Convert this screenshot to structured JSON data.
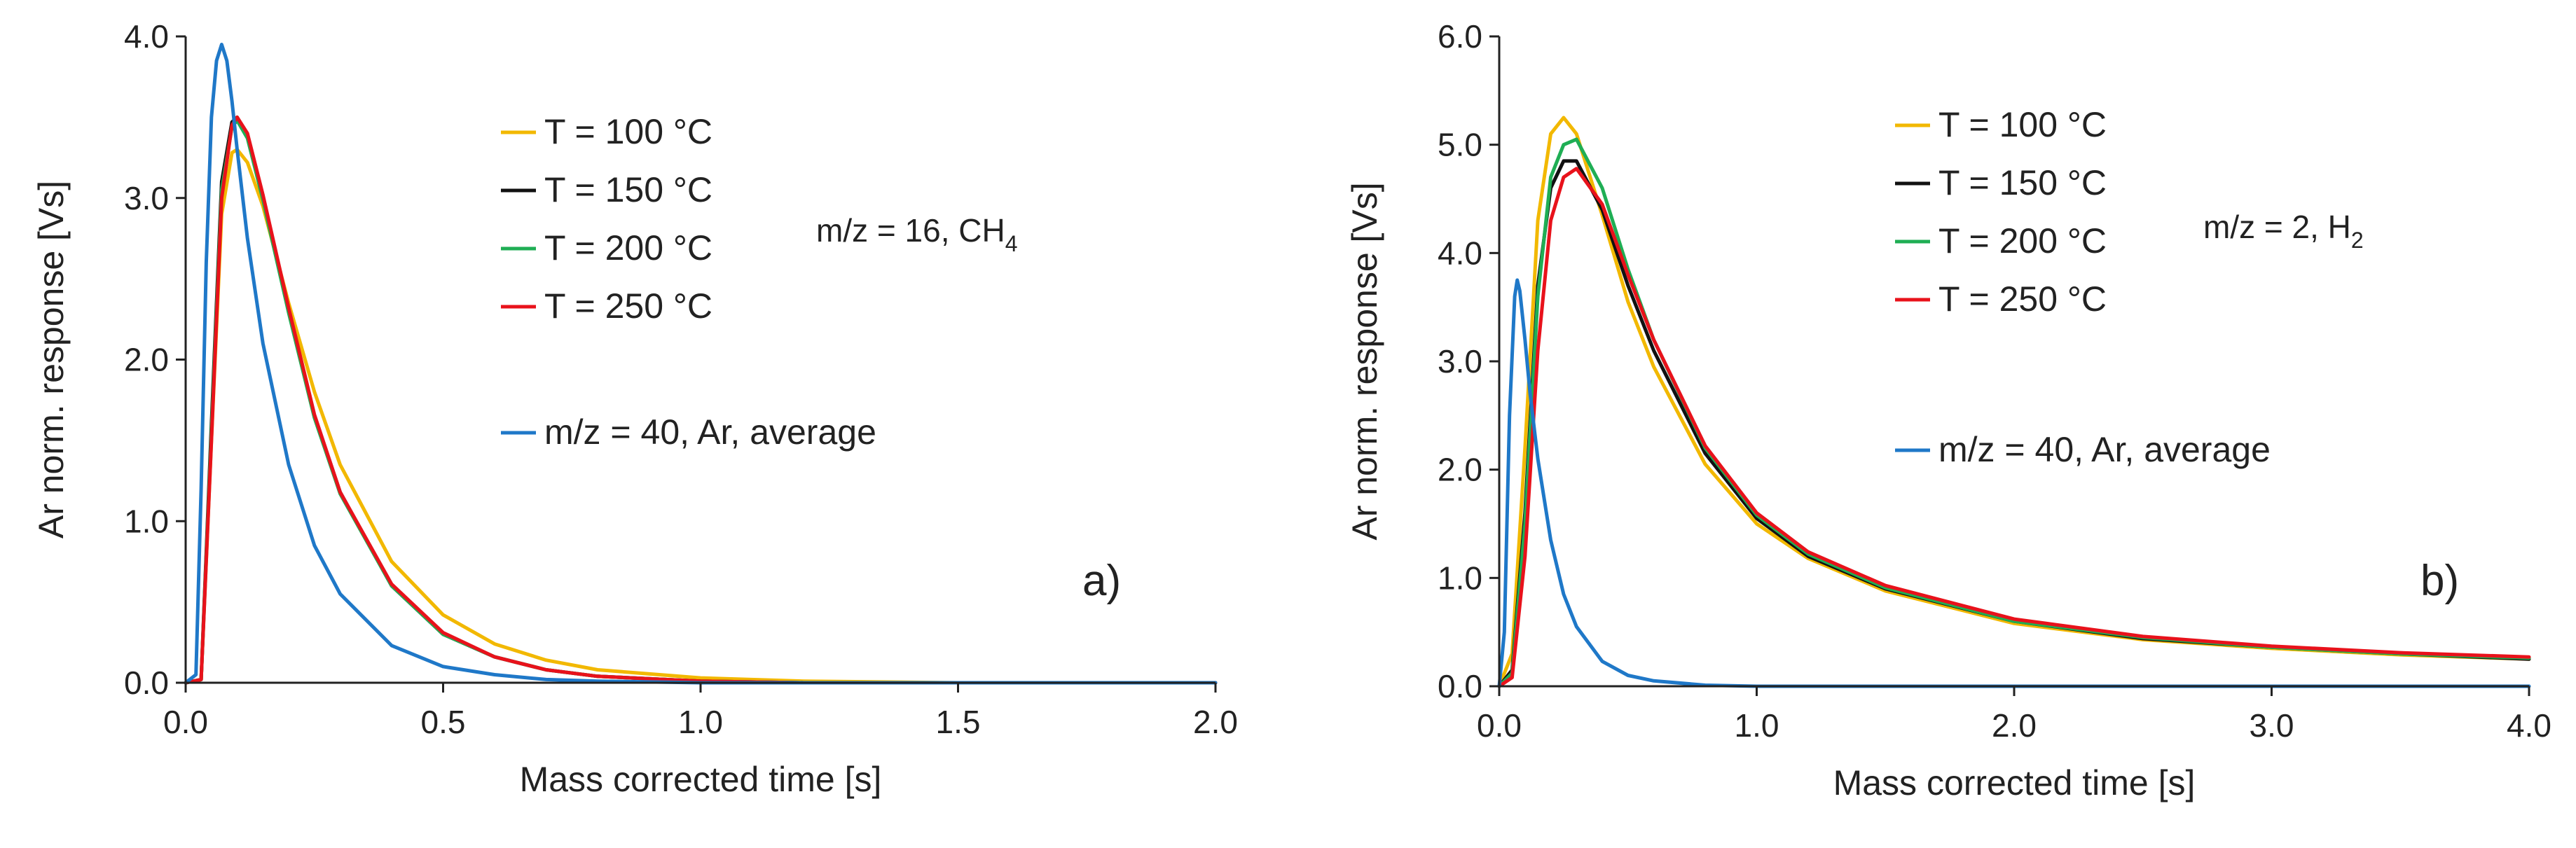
{
  "chart_data": [
    {
      "type": "line",
      "panel_label": "a)",
      "xlabel": "Mass corrected time [s]",
      "ylabel": "Ar norm. response [Vs]",
      "xlim": [
        0,
        2.0
      ],
      "ylim": [
        0,
        4.0
      ],
      "x_ticks": [
        "0.0",
        "0.5",
        "1.0",
        "1.5",
        "2.0"
      ],
      "y_ticks": [
        "0.0",
        "1.0",
        "2.0",
        "3.0",
        "4.0"
      ],
      "annotation": {
        "text": "m/z = 16, CH",
        "sub": "4"
      },
      "legend_position": "top-center",
      "series": [
        {
          "name": "T = 100 °C",
          "color": "#f2b800",
          "x": [
            0,
            0.03,
            0.05,
            0.07,
            0.09,
            0.1,
            0.12,
            0.15,
            0.2,
            0.25,
            0.3,
            0.4,
            0.5,
            0.6,
            0.7,
            0.8,
            1.0,
            1.2,
            1.5,
            2.0
          ],
          "y": [
            0,
            0.02,
            1.5,
            2.9,
            3.28,
            3.3,
            3.22,
            2.95,
            2.35,
            1.8,
            1.35,
            0.75,
            0.42,
            0.24,
            0.14,
            0.08,
            0.03,
            0.01,
            0.0,
            0.0
          ]
        },
        {
          "name": "T = 150 °C",
          "color": "#111111",
          "x": [
            0,
            0.03,
            0.05,
            0.07,
            0.09,
            0.1,
            0.12,
            0.15,
            0.2,
            0.25,
            0.3,
            0.4,
            0.5,
            0.6,
            0.7,
            0.8,
            1.0,
            1.2,
            1.5,
            2.0
          ],
          "y": [
            0,
            0.02,
            1.6,
            3.1,
            3.47,
            3.5,
            3.38,
            3.0,
            2.3,
            1.65,
            1.18,
            0.6,
            0.3,
            0.16,
            0.08,
            0.04,
            0.01,
            0.0,
            0.0,
            0.0
          ]
        },
        {
          "name": "T = 200 °C",
          "color": "#1fae54",
          "x": [
            0,
            0.03,
            0.05,
            0.07,
            0.09,
            0.1,
            0.12,
            0.15,
            0.2,
            0.25,
            0.3,
            0.4,
            0.5,
            0.6,
            0.7,
            0.8,
            1.0,
            1.2,
            1.5,
            2.0
          ],
          "y": [
            0,
            0.02,
            1.55,
            3.05,
            3.44,
            3.48,
            3.37,
            2.99,
            2.29,
            1.64,
            1.17,
            0.6,
            0.3,
            0.16,
            0.08,
            0.04,
            0.01,
            0.0,
            0.0,
            0.0
          ]
        },
        {
          "name": "T = 250 °C",
          "color": "#e8121b",
          "x": [
            0,
            0.03,
            0.05,
            0.07,
            0.09,
            0.1,
            0.12,
            0.15,
            0.2,
            0.25,
            0.3,
            0.4,
            0.5,
            0.6,
            0.7,
            0.8,
            1.0,
            1.2,
            1.5,
            2.0
          ],
          "y": [
            0,
            0.02,
            1.5,
            3.0,
            3.45,
            3.5,
            3.4,
            3.02,
            2.32,
            1.66,
            1.18,
            0.61,
            0.31,
            0.16,
            0.08,
            0.04,
            0.01,
            0.0,
            0.0,
            0.0
          ]
        },
        {
          "name": "m/z = 40, Ar, average",
          "color": "#1f78c8",
          "x": [
            0,
            0.02,
            0.03,
            0.04,
            0.05,
            0.06,
            0.07,
            0.08,
            0.09,
            0.1,
            0.12,
            0.15,
            0.2,
            0.25,
            0.3,
            0.4,
            0.5,
            0.6,
            0.7,
            0.8,
            1.0,
            2.0
          ],
          "y": [
            0,
            0.05,
            1.2,
            2.6,
            3.5,
            3.85,
            3.95,
            3.85,
            3.6,
            3.3,
            2.75,
            2.1,
            1.35,
            0.85,
            0.55,
            0.23,
            0.1,
            0.05,
            0.02,
            0.01,
            0.0,
            0.0
          ]
        }
      ]
    },
    {
      "type": "line",
      "panel_label": "b)",
      "xlabel": "Mass corrected time [s]",
      "ylabel": "Ar norm. response [Vs]",
      "xlim": [
        0,
        4.0
      ],
      "ylim": [
        0,
        6.0
      ],
      "x_ticks": [
        "0.0",
        "1.0",
        "2.0",
        "3.0",
        "4.0"
      ],
      "y_ticks": [
        "0.0",
        "1.0",
        "2.0",
        "3.0",
        "4.0",
        "5.0",
        "6.0"
      ],
      "annotation": {
        "text": "m/z = 2, H",
        "sub": "2"
      },
      "legend_position": "top-center",
      "series": [
        {
          "name": "T = 100 °C",
          "color": "#f2b800",
          "x": [
            0,
            0.05,
            0.1,
            0.15,
            0.2,
            0.25,
            0.3,
            0.4,
            0.5,
            0.6,
            0.8,
            1.0,
            1.2,
            1.5,
            2.0,
            2.5,
            3.0,
            3.5,
            4.0
          ],
          "y": [
            0,
            0.3,
            2.2,
            4.3,
            5.1,
            5.25,
            5.1,
            4.35,
            3.55,
            2.95,
            2.05,
            1.5,
            1.18,
            0.88,
            0.58,
            0.43,
            0.35,
            0.29,
            0.25
          ]
        },
        {
          "name": "T = 150 °C",
          "color": "#111111",
          "x": [
            0,
            0.05,
            0.1,
            0.15,
            0.2,
            0.25,
            0.3,
            0.4,
            0.5,
            0.6,
            0.8,
            1.0,
            1.2,
            1.5,
            2.0,
            2.5,
            3.0,
            3.5,
            4.0
          ],
          "y": [
            0,
            0.15,
            1.6,
            3.7,
            4.6,
            4.85,
            4.85,
            4.4,
            3.7,
            3.1,
            2.15,
            1.55,
            1.2,
            0.9,
            0.6,
            0.44,
            0.36,
            0.3,
            0.25
          ]
        },
        {
          "name": "T = 200 °C",
          "color": "#1fae54",
          "x": [
            0,
            0.05,
            0.1,
            0.15,
            0.2,
            0.25,
            0.3,
            0.4,
            0.5,
            0.6,
            0.8,
            1.0,
            1.2,
            1.5,
            2.0,
            2.5,
            3.0,
            3.5,
            4.0
          ],
          "y": [
            0,
            0.12,
            1.5,
            3.6,
            4.7,
            5.0,
            5.05,
            4.6,
            3.85,
            3.2,
            2.2,
            1.58,
            1.22,
            0.91,
            0.6,
            0.45,
            0.36,
            0.3,
            0.26
          ]
        },
        {
          "name": "T = 250 °C",
          "color": "#e8121b",
          "x": [
            0,
            0.05,
            0.1,
            0.15,
            0.2,
            0.25,
            0.3,
            0.4,
            0.5,
            0.6,
            0.8,
            1.0,
            1.2,
            1.5,
            2.0,
            2.5,
            3.0,
            3.5,
            4.0
          ],
          "y": [
            0,
            0.08,
            1.2,
            3.1,
            4.3,
            4.7,
            4.78,
            4.45,
            3.8,
            3.2,
            2.22,
            1.6,
            1.24,
            0.93,
            0.62,
            0.46,
            0.37,
            0.31,
            0.27
          ]
        },
        {
          "name": "m/z = 40, Ar, average",
          "color": "#1f78c8",
          "x": [
            0,
            0.02,
            0.04,
            0.06,
            0.07,
            0.08,
            0.1,
            0.12,
            0.15,
            0.2,
            0.25,
            0.3,
            0.4,
            0.5,
            0.6,
            0.8,
            1.0,
            2.0,
            4.0
          ],
          "y": [
            0,
            0.5,
            2.5,
            3.6,
            3.75,
            3.65,
            3.2,
            2.7,
            2.1,
            1.35,
            0.85,
            0.55,
            0.23,
            0.1,
            0.05,
            0.01,
            0.0,
            0.0,
            0.0
          ]
        }
      ]
    }
  ]
}
